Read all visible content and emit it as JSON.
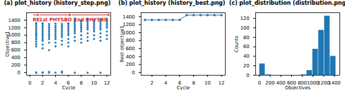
{
  "chart_data": [
    {
      "type": "scatter",
      "title": "(a) plot_history (history_step.png)",
      "x_label": "Cycle",
      "y_label": "Objective1",
      "color": "#1f77b4",
      "marker": "o",
      "xlim": [
        -0.5,
        12.6
      ],
      "xticks": [
        0,
        2,
        4,
        6,
        8,
        10,
        12
      ],
      "ylim": [
        -70,
        1600
      ],
      "yticks": [
        0,
        200,
        400,
        600,
        800,
        1000,
        1200,
        1400
      ],
      "x": [
        1,
        1,
        1,
        1,
        1,
        1,
        1,
        1,
        1,
        1,
        1,
        1,
        1,
        1,
        1,
        1,
        1,
        2,
        2,
        2,
        2,
        2,
        2,
        2,
        2,
        2,
        2,
        2,
        2,
        2,
        2,
        2,
        3,
        3,
        3,
        3,
        3,
        3,
        3,
        3,
        3,
        3,
        3,
        3,
        3,
        4,
        4,
        4,
        4,
        4,
        4,
        4,
        4,
        4,
        4,
        4,
        4,
        5,
        5,
        5,
        5,
        5,
        5,
        5,
        5,
        5,
        5,
        5,
        5,
        6,
        6,
        6,
        6,
        6,
        6,
        6,
        6,
        6,
        6,
        6,
        7,
        7,
        7,
        7,
        7,
        7,
        7,
        7,
        7,
        7,
        7,
        7,
        8,
        8,
        8,
        8,
        8,
        8,
        8,
        8,
        8,
        8,
        9,
        9,
        9,
        9,
        9,
        9,
        9,
        9,
        9,
        9,
        9,
        10,
        10,
        10,
        10,
        10,
        10,
        10,
        10,
        10,
        11,
        11,
        11,
        11,
        11,
        11,
        11,
        11,
        11,
        11,
        12,
        12,
        12,
        12,
        12,
        12,
        12,
        12,
        12
      ],
      "values": [
        0,
        0,
        5,
        700,
        760,
        820,
        880,
        930,
        980,
        1020,
        1060,
        1100,
        1150,
        1200,
        1250,
        1300,
        1320,
        0,
        10,
        650,
        750,
        850,
        900,
        950,
        1000,
        1050,
        1100,
        1150,
        1200,
        1250,
        1300,
        1320,
        0,
        20,
        600,
        800,
        900,
        950,
        1000,
        1050,
        1100,
        1150,
        1200,
        1250,
        1300,
        0,
        700,
        800,
        900,
        950,
        1000,
        1050,
        1100,
        1150,
        1200,
        1250,
        1310,
        0,
        30,
        750,
        850,
        950,
        1000,
        1050,
        1100,
        1150,
        1200,
        1250,
        1300,
        700,
        800,
        900,
        1000,
        1050,
        1100,
        1150,
        1200,
        1250,
        1300,
        1320,
        0,
        850,
        950,
        1050,
        1100,
        1150,
        1200,
        1250,
        1300,
        1350,
        1400,
        1440,
        800,
        900,
        1000,
        1100,
        1150,
        1200,
        1250,
        1300,
        1350,
        1400,
        0,
        850,
        950,
        1050,
        1150,
        1200,
        1250,
        1300,
        1350,
        1400,
        1430,
        900,
        1000,
        1100,
        1150,
        1200,
        1250,
        1300,
        1350,
        1400,
        0,
        850,
        950,
        1050,
        1150,
        1200,
        1250,
        1300,
        1350,
        1420,
        900,
        1000,
        1100,
        1200,
        1250,
        1300,
        1350,
        1400,
        1430
      ],
      "annotations": [
        {
          "text": "RE",
          "x": 1,
          "y": 1540,
          "x_start": 0.6,
          "x_end": 1.4,
          "color": "#d62728"
        },
        {
          "text": "1st PHYSBO",
          "x": 4,
          "y": 1540,
          "x_start": 1.6,
          "x_end": 6.4,
          "color": "#d62728"
        },
        {
          "text": "2nd PHYSBO",
          "x": 9.5,
          "y": 1540,
          "x_start": 6.6,
          "x_end": 12.4,
          "color": "#d62728"
        }
      ]
    },
    {
      "type": "line",
      "title": "(b) plot_history (history_best.png)",
      "x_label": "Cycle",
      "y_label": "Best objective1",
      "color": "#1f77b4",
      "marker": "o",
      "xlim": [
        0.45,
        12.55
      ],
      "xticks": [
        2,
        4,
        6,
        8,
        10,
        12
      ],
      "ylim": [
        -70,
        1500
      ],
      "yticks": [
        0,
        200,
        400,
        600,
        800,
        1000,
        1200,
        1400
      ],
      "x": [
        1,
        2,
        3,
        4,
        5,
        6,
        7,
        8,
        9,
        10,
        11,
        12
      ],
      "values": [
        1320,
        1320,
        1320,
        1320,
        1320,
        1320,
        1440,
        1440,
        1440,
        1440,
        1440,
        1440
      ]
    },
    {
      "type": "histogram",
      "title": "(c) plot_distribution (distribution.png)",
      "x_label": "Objectives",
      "y_label": "Counts",
      "color": "#1f77b4",
      "xlim": [
        -70,
        1500
      ],
      "xticks": [
        0,
        200,
        400,
        600,
        800,
        1000,
        1200,
        1400
      ],
      "ylim": [
        0,
        132
      ],
      "yticks": [
        0,
        20,
        40,
        60,
        80,
        100,
        120
      ],
      "bins": [
        0,
        110,
        220,
        330,
        440,
        550,
        660,
        770,
        880,
        990,
        1100,
        1210,
        1320,
        1430
      ],
      "values": [
        24,
        1,
        0,
        0,
        0,
        0,
        0,
        1,
        10,
        55,
        95,
        125,
        40
      ]
    }
  ]
}
